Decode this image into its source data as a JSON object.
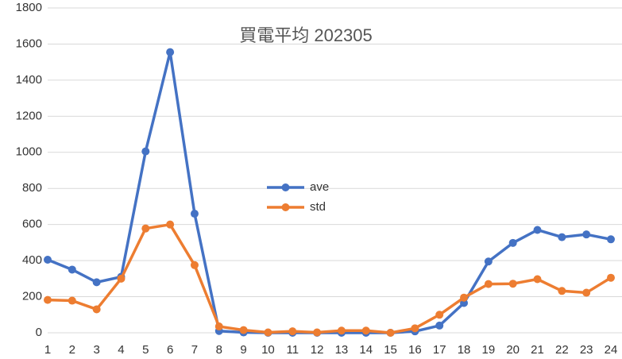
{
  "chart_data": {
    "type": "line",
    "title": "買電平均 202305",
    "categories": [
      "1",
      "2",
      "3",
      "4",
      "5",
      "6",
      "7",
      "8",
      "9",
      "10",
      "11",
      "12",
      "13",
      "14",
      "15",
      "16",
      "17",
      "18",
      "19",
      "20",
      "21",
      "22",
      "23",
      "24"
    ],
    "series": [
      {
        "name": "ave",
        "color": "#4472c4",
        "values": [
          405,
          350,
          280,
          310,
          1005,
          1555,
          660,
          10,
          2,
          0,
          0,
          0,
          0,
          0,
          0,
          8,
          40,
          165,
          395,
          498,
          570,
          530,
          545,
          518
        ]
      },
      {
        "name": "std",
        "color": "#ed7d31",
        "values": [
          182,
          178,
          130,
          300,
          578,
          600,
          375,
          35,
          15,
          2,
          8,
          2,
          12,
          12,
          0,
          25,
          100,
          195,
          270,
          272,
          297,
          232,
          222,
          305
        ]
      }
    ],
    "ylim": [
      0,
      1800
    ],
    "yticks": [
      0,
      200,
      400,
      600,
      800,
      1000,
      1200,
      1400,
      1600,
      1800
    ],
    "grid": true
  }
}
